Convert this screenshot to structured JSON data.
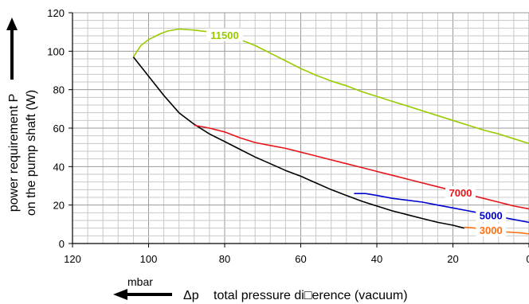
{
  "chart_data": {
    "type": "line",
    "title": "",
    "xlabel_symbol": "Δp",
    "xlabel": "total pressure di□erence (vacuum)",
    "x_unit": "mbar",
    "ylabel_line1": "power requirement P",
    "ylabel_line2": "on the pump shaft (W)",
    "xlim": [
      120,
      0
    ],
    "ylim": [
      0,
      120
    ],
    "x_ticks": [
      120,
      100,
      80,
      60,
      40,
      20,
      0
    ],
    "y_ticks": [
      0,
      20,
      40,
      60,
      80,
      100,
      120
    ],
    "grid": true,
    "series": [
      {
        "name": "11500",
        "color": "#99cc00",
        "x": [
          104,
          102,
          100,
          97,
          95,
          92,
          88,
          84,
          80,
          76,
          72,
          68,
          64,
          60,
          56,
          52,
          48,
          44,
          40,
          36,
          32,
          28,
          24,
          20,
          16,
          12,
          8,
          4,
          0
        ],
        "y": [
          97,
          103,
          106,
          109,
          110.5,
          111.5,
          111,
          110,
          108.5,
          106,
          103,
          99,
          95,
          91,
          87.5,
          84.5,
          82,
          79,
          76.5,
          74,
          71.5,
          69,
          66.5,
          64,
          61.5,
          59,
          57,
          54.5,
          52
        ]
      },
      {
        "name": "",
        "color": "#000000",
        "x": [
          104,
          100,
          96,
          92,
          88,
          84,
          80,
          76,
          72,
          68,
          64,
          60,
          56,
          52,
          48,
          44,
          40,
          36,
          32,
          28,
          24,
          20,
          17
        ],
        "y": [
          97,
          87,
          77,
          68,
          62,
          57,
          53,
          49,
          45,
          41.5,
          38,
          35,
          31.5,
          28,
          25,
          22,
          19.5,
          17,
          15,
          13,
          11,
          9.5,
          8
        ]
      },
      {
        "name": "7000",
        "color": "#e8141c",
        "x": [
          88,
          84,
          80,
          76,
          72,
          68,
          64,
          60,
          56,
          52,
          48,
          44,
          40,
          36,
          32,
          28,
          24,
          20,
          16,
          12,
          8,
          4,
          0
        ],
        "y": [
          61.5,
          60,
          58,
          55,
          52.5,
          51,
          49.5,
          47.5,
          45.5,
          43.5,
          41.5,
          39.5,
          37.5,
          35.5,
          33.5,
          31.5,
          29.5,
          27.5,
          25.5,
          23.5,
          21.5,
          19.5,
          18
        ]
      },
      {
        "name": "5000",
        "color": "#0000d0",
        "x": [
          46,
          43,
          40,
          36,
          32,
          28,
          24,
          20,
          16,
          12,
          8,
          4,
          0
        ],
        "y": [
          26,
          26,
          25,
          23.5,
          22.5,
          21.5,
          20,
          18.5,
          17,
          15.5,
          14,
          12.5,
          11
        ]
      },
      {
        "name": "3000",
        "color": "#ff7010",
        "x": [
          17,
          14,
          10,
          6,
          2,
          0
        ],
        "y": [
          8.5,
          8,
          7,
          6,
          5.5,
          5
        ]
      }
    ]
  }
}
